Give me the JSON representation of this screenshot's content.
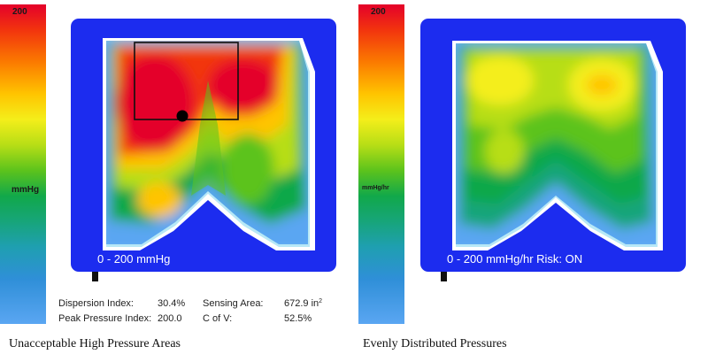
{
  "left_panel": {
    "scale": {
      "max_label": "200",
      "unit_label": "mmHg"
    },
    "mat_label": "0 - 200 mmHg",
    "stats": {
      "dispersion_index": {
        "label": "Dispersion Index:",
        "value": "30.4%"
      },
      "peak_pressure_index": {
        "label": "Peak Pressure Index:",
        "value": "200.0"
      },
      "sensing_area": {
        "label": "Sensing Area:",
        "value": "672.9 in",
        "unit_superscript": "2"
      },
      "coefficient_of_variation": {
        "label": "C of V:",
        "value": "52.5%"
      }
    },
    "caption": "Unacceptable High Pressure Areas"
  },
  "right_panel": {
    "scale": {
      "max_label": "200",
      "unit_label": "mmHg/hr"
    },
    "mat_label": "0 - 200 mmHg/hr  Risk: ON",
    "caption": "Evenly Distributed Pressures"
  },
  "colors": {
    "mat_background": "#1c2cef",
    "high_pressure": "#e4002a",
    "medium_pressure": "#ffc400",
    "low_pressure": "#11a84a",
    "minimal_pressure": "#2f8fd8"
  }
}
